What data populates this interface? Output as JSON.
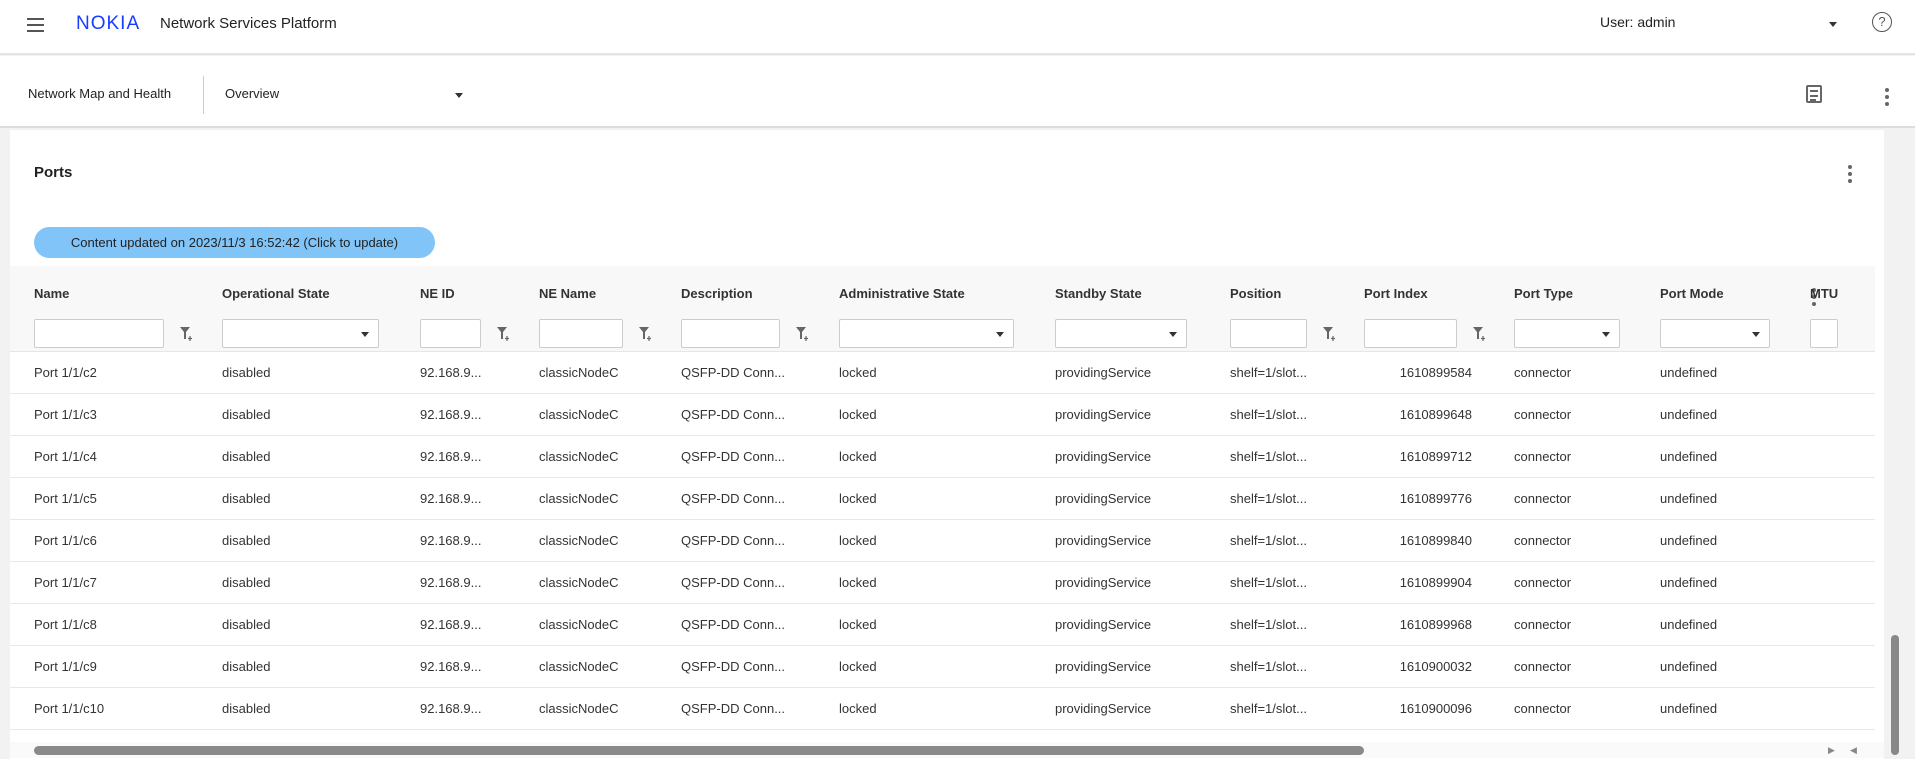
{
  "header": {
    "logo": "NOKIA",
    "title": "Network Services Platform",
    "user": "User: admin"
  },
  "subbar": {
    "app": "Network Map and Health",
    "view": "Overview"
  },
  "panel": {
    "title": "Ports",
    "update_label": "Content updated on 2023/11/3 16:52:42 (Click to update)"
  },
  "columns": [
    "Name",
    "Operational State",
    "NE ID",
    "NE Name",
    "Description",
    "Administrative State",
    "Standby State",
    "Position",
    "Port Index",
    "Port Type",
    "Port Mode",
    "MTU"
  ],
  "rows": [
    [
      "Port 1/1/c2",
      "disabled",
      "92.168.9...",
      "classicNodeC",
      "QSFP-DD Conn...",
      "locked",
      "providingService",
      "shelf=1/slot...",
      "1610899584",
      "connector",
      "undefined"
    ],
    [
      "Port 1/1/c3",
      "disabled",
      "92.168.9...",
      "classicNodeC",
      "QSFP-DD Conn...",
      "locked",
      "providingService",
      "shelf=1/slot...",
      "1610899648",
      "connector",
      "undefined"
    ],
    [
      "Port 1/1/c4",
      "disabled",
      "92.168.9...",
      "classicNodeC",
      "QSFP-DD Conn...",
      "locked",
      "providingService",
      "shelf=1/slot...",
      "1610899712",
      "connector",
      "undefined"
    ],
    [
      "Port 1/1/c5",
      "disabled",
      "92.168.9...",
      "classicNodeC",
      "QSFP-DD Conn...",
      "locked",
      "providingService",
      "shelf=1/slot...",
      "1610899776",
      "connector",
      "undefined"
    ],
    [
      "Port 1/1/c6",
      "disabled",
      "92.168.9...",
      "classicNodeC",
      "QSFP-DD Conn...",
      "locked",
      "providingService",
      "shelf=1/slot...",
      "1610899840",
      "connector",
      "undefined"
    ],
    [
      "Port 1/1/c7",
      "disabled",
      "92.168.9...",
      "classicNodeC",
      "QSFP-DD Conn...",
      "locked",
      "providingService",
      "shelf=1/slot...",
      "1610899904",
      "connector",
      "undefined"
    ],
    [
      "Port 1/1/c8",
      "disabled",
      "92.168.9...",
      "classicNodeC",
      "QSFP-DD Conn...",
      "locked",
      "providingService",
      "shelf=1/slot...",
      "1610899968",
      "connector",
      "undefined"
    ],
    [
      "Port 1/1/c9",
      "disabled",
      "92.168.9...",
      "classicNodeC",
      "QSFP-DD Conn...",
      "locked",
      "providingService",
      "shelf=1/slot...",
      "1610900032",
      "connector",
      "undefined"
    ],
    [
      "Port 1/1/c10",
      "disabled",
      "92.168.9...",
      "classicNodeC",
      "QSFP-DD Conn...",
      "locked",
      "providingService",
      "shelf=1/slot...",
      "1610900096",
      "connector",
      "undefined"
    ]
  ],
  "colors": {
    "accent": "#80c4f8",
    "logo": "#1a3cff"
  }
}
